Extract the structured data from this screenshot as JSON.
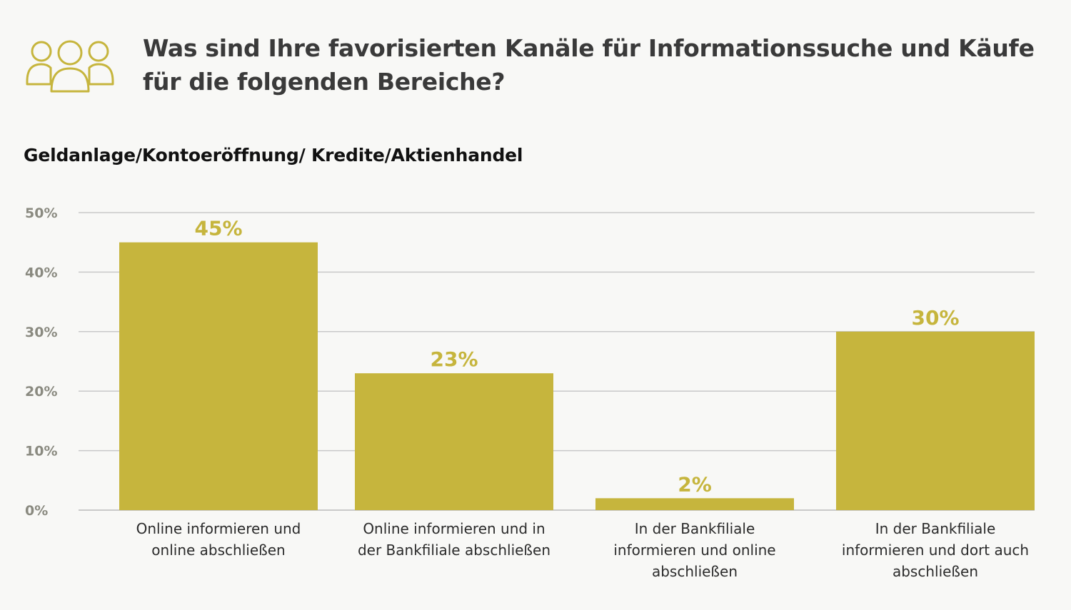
{
  "header": {
    "title": "Was sind Ihre favorisierten Kanäle für Informationssuche und Käufe für die folgenden Bereiche?",
    "icon": "people-group-icon"
  },
  "colors": {
    "accent": "#c6b53d",
    "grid": "#c9c9c9",
    "background": "#f8f8f6"
  },
  "chart_data": {
    "type": "bar",
    "title": "Geldanlage/Kontoeröffnung/ Kredite/Aktienhandel",
    "xlabel": "",
    "ylabel": "",
    "ylim": [
      0,
      50
    ],
    "yticks": [
      0,
      10,
      20,
      30,
      40,
      50
    ],
    "ytick_labels": [
      "0%",
      "10%",
      "20%",
      "30%",
      "40%",
      "50%"
    ],
    "grid": true,
    "categories": [
      [
        "Online informieren und",
        "online abschließen"
      ],
      [
        "Online informieren und in",
        "der Bankfiliale abschließen"
      ],
      [
        "In der Bankfiliale",
        "informieren und online",
        "abschließen"
      ],
      [
        "In der Bankfiliale",
        "informieren und dort auch",
        "abschließen"
      ]
    ],
    "values": [
      45,
      23,
      2,
      30
    ],
    "data_labels": [
      "45%",
      "23%",
      "2%",
      "30%"
    ]
  }
}
